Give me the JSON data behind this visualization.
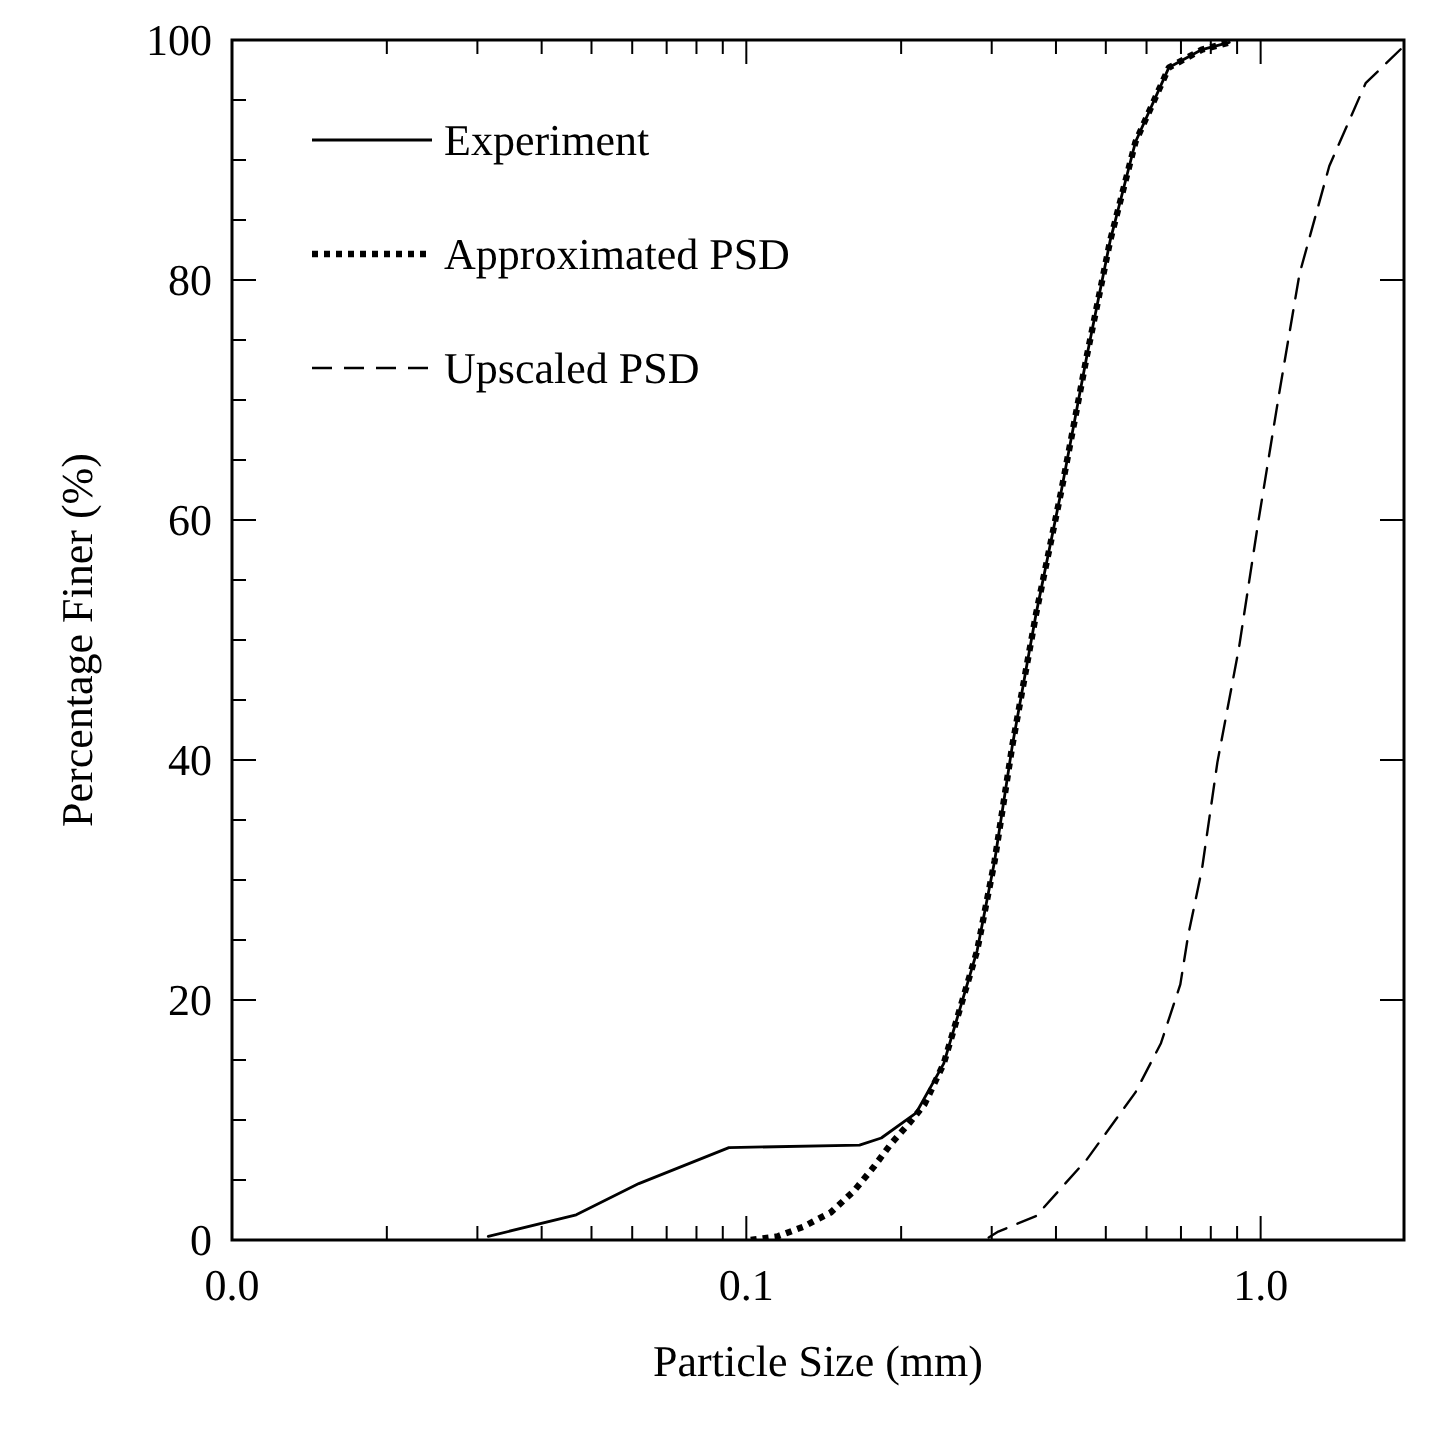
{
  "chart_data": {
    "type": "line",
    "xlabel": "Particle Size (mm)",
    "ylabel": "Percentage Finer (%)",
    "log": "x",
    "xlim": [
      0.01,
      1.9
    ],
    "ylim": [
      0,
      100
    ],
    "xticks": [
      {
        "value": 0.01,
        "label": "0.0"
      },
      {
        "value": 0.02,
        "label": null
      },
      {
        "value": 0.03,
        "label": null
      },
      {
        "value": 0.04,
        "label": null
      },
      {
        "value": 0.05,
        "label": null
      },
      {
        "value": 0.06,
        "label": null
      },
      {
        "value": 0.07,
        "label": null
      },
      {
        "value": 0.08,
        "label": null
      },
      {
        "value": 0.09,
        "label": null
      },
      {
        "value": 0.1,
        "label": "0.1"
      },
      {
        "value": 0.2,
        "label": null
      },
      {
        "value": 0.3,
        "label": null
      },
      {
        "value": 0.4,
        "label": null
      },
      {
        "value": 0.5,
        "label": null
      },
      {
        "value": 0.6,
        "label": null
      },
      {
        "value": 0.7,
        "label": null
      },
      {
        "value": 0.8,
        "label": null
      },
      {
        "value": 0.9,
        "label": null
      },
      {
        "value": 1,
        "label": "1.0"
      }
    ],
    "yticks": [
      0,
      {
        "value": 5,
        "label": null
      },
      {
        "value": 10,
        "label": null
      },
      {
        "value": 15,
        "label": null
      },
      20,
      {
        "value": 25,
        "label": null
      },
      {
        "value": 30,
        "label": null
      },
      {
        "value": 35,
        "label": null
      },
      40,
      {
        "value": 45,
        "label": null
      },
      {
        "value": 50,
        "label": null
      },
      {
        "value": 55,
        "label": null
      },
      60,
      {
        "value": 65,
        "label": null
      },
      {
        "value": 70,
        "label": null
      },
      {
        "value": 75,
        "label": null
      },
      80,
      {
        "value": 85,
        "label": null
      },
      {
        "value": 90,
        "label": null
      },
      {
        "value": 95,
        "label": null
      },
      100
    ],
    "grid": false,
    "legend": "top left",
    "marker": "none",
    "series": [
      {
        "name": "Experiment",
        "color": "#000000",
        "line_style": "solid",
        "x": [
          0.0315,
          0.0467,
          0.0618,
          0.0925,
          0.166,
          0.183,
          0.214,
          0.242,
          0.281,
          0.304,
          0.329,
          0.366,
          0.41,
          0.459,
          0.51,
          0.571,
          0.663,
          0.769,
          0.869
        ],
        "values": [
          0.3,
          2.1,
          4.7,
          7.7,
          7.9,
          8.5,
          10.6,
          14.7,
          24.1,
          31.6,
          41.2,
          52.2,
          62.5,
          73.6,
          83.3,
          91.5,
          97.7,
          99.2,
          99.8
        ]
      },
      {
        "name": "Approximated PSD",
        "color": "#000000",
        "line_style": "dotted",
        "x": [
          0.102,
          0.115,
          0.129,
          0.146,
          0.162,
          0.177,
          0.191,
          0.208,
          0.222,
          0.242,
          0.281,
          0.304,
          0.329,
          0.366,
          0.41,
          0.459,
          0.51,
          0.571,
          0.663,
          0.769,
          0.869
        ],
        "values": [
          0,
          0.3,
          1.1,
          2.3,
          4.1,
          6.1,
          8.0,
          9.8,
          11.3,
          14.7,
          24.1,
          31.6,
          41.2,
          52.2,
          62.5,
          73.6,
          83.3,
          91.5,
          97.7,
          99.2,
          99.8
        ]
      },
      {
        "name": "Upscaled PSD",
        "color": "#000000",
        "line_style": "dashed",
        "x": [
          0.296,
          0.309,
          0.366,
          0.459,
          0.571,
          0.64,
          0.698,
          0.723,
          0.769,
          0.824,
          0.908,
          0.99,
          1.09,
          1.19,
          1.36,
          1.6,
          1.9
        ],
        "values": [
          0.2,
          0.7,
          2.0,
          6.7,
          12.3,
          16.4,
          21.3,
          25.4,
          30.9,
          39.8,
          49.4,
          59.9,
          70.9,
          80.5,
          89.5,
          96.4,
          99.5
        ]
      }
    ]
  }
}
